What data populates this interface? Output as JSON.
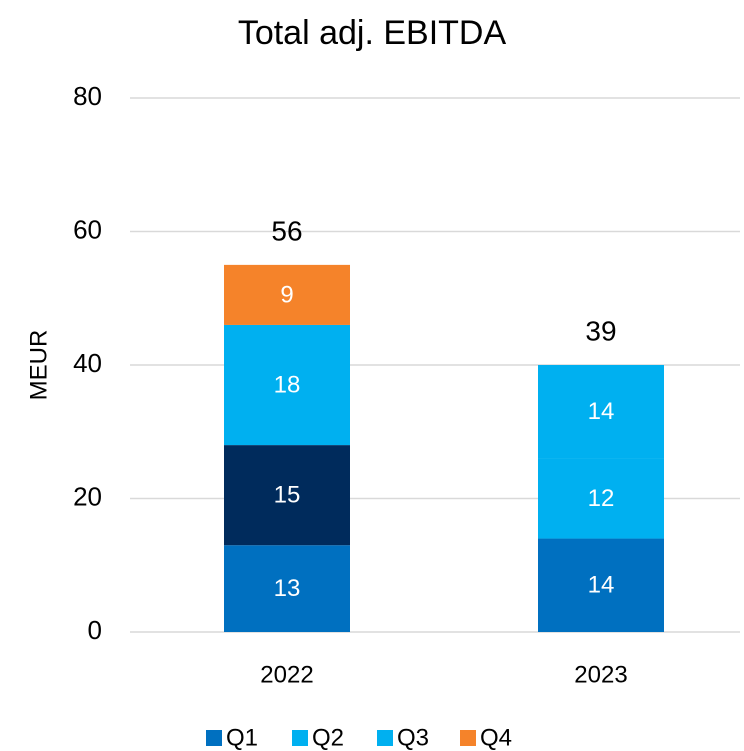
{
  "chart_data": {
    "type": "stacked_bar",
    "title": "Total adj. EBITDA",
    "y_label": "MEUR",
    "categories": [
      "2022",
      "2023"
    ],
    "series": [
      {
        "name": "Q1",
        "color": "#0070c0",
        "values": [
          13,
          14
        ]
      },
      {
        "name": "Q2",
        "color": "#00b0f0",
        "colors": [
          "#002b5c",
          "#00b0f0"
        ],
        "values": [
          15,
          12
        ]
      },
      {
        "name": "Q3",
        "color": "#00b0f0",
        "values": [
          18,
          14
        ]
      },
      {
        "name": "Q4",
        "color": "#f5832a",
        "values": [
          9,
          null
        ]
      }
    ],
    "totals": [
      56,
      39
    ],
    "ylim": [
      0,
      80
    ],
    "yticks": [
      0,
      20,
      40,
      60,
      80
    ],
    "grid": true,
    "legend": "bottom"
  }
}
